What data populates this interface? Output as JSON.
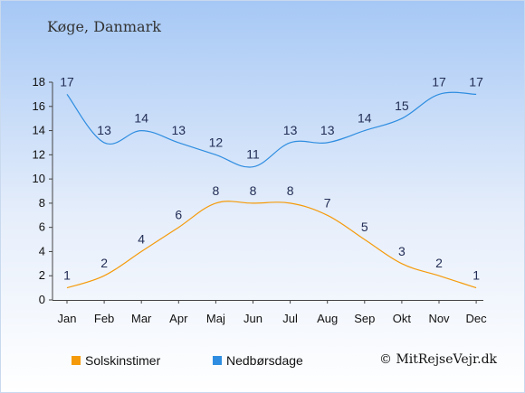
{
  "header": {
    "location": "Køge, Danmark"
  },
  "legend": {
    "sun_label": "Solskinstimer",
    "rain_label": "Nedbørsdage"
  },
  "credit": "© MitRejseVejr.dk",
  "chart_data": {
    "type": "line",
    "categories": [
      "Jan",
      "Feb",
      "Mar",
      "Apr",
      "Maj",
      "Jun",
      "Jul",
      "Aug",
      "Sep",
      "Okt",
      "Nov",
      "Dec"
    ],
    "ylim": [
      0,
      18
    ],
    "yticks": [
      0,
      2,
      4,
      6,
      8,
      10,
      12,
      14,
      16,
      18
    ],
    "grid": false,
    "legend_position": "bottom",
    "series": [
      {
        "name": "Solskinstimer",
        "color": "#f59b0b",
        "values": [
          1,
          2,
          4,
          6,
          8,
          8,
          8,
          7,
          5,
          3,
          2,
          1
        ]
      },
      {
        "name": "Nedbørsdage",
        "color": "#2e8de0",
        "values": [
          17,
          13,
          14,
          13,
          12,
          11,
          13,
          13,
          14,
          15,
          17,
          17
        ]
      }
    ]
  }
}
